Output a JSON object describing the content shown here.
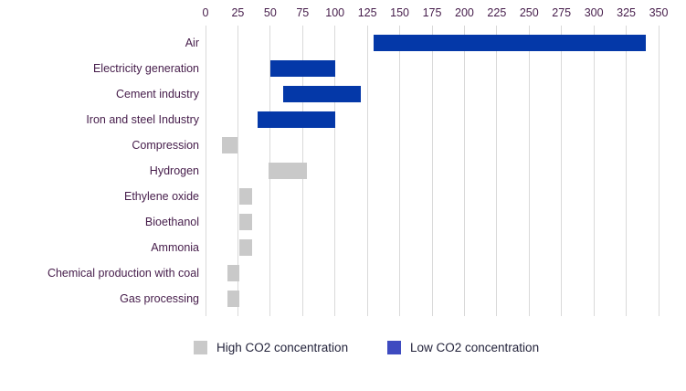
{
  "chart_data": {
    "type": "bar",
    "orientation": "horizontal-range",
    "title": "",
    "x_axis": {
      "position": "top",
      "min": 0,
      "max": 350,
      "tick_step": 25,
      "tick_labels": [
        "0",
        "25",
        "50",
        "75",
        "100",
        "125",
        "150",
        "175",
        "200",
        "225",
        "250",
        "275",
        "300",
        "325",
        "350"
      ],
      "grid": true
    },
    "categories": [
      "Air",
      "Electricity generation",
      "Cement industry",
      "Iron and steel Industry",
      "Compression",
      "Hydrogen",
      "Ethylene oxide",
      "Bioethanol",
      "Ammonia",
      "Chemical production with coal",
      "Gas processing"
    ],
    "bars": [
      {
        "category": "Air",
        "start": 130,
        "end": 340,
        "series": "Low CO2 concentration"
      },
      {
        "category": "Electricity generation",
        "start": 50,
        "end": 100,
        "series": "Low CO2 concentration"
      },
      {
        "category": "Cement industry",
        "start": 60,
        "end": 120,
        "series": "Low CO2 concentration"
      },
      {
        "category": "Iron and steel Industry",
        "start": 40,
        "end": 100,
        "series": "Low CO2 concentration"
      },
      {
        "category": "Compression",
        "start": 13,
        "end": 25,
        "series": "High CO2 concentration"
      },
      {
        "category": "Hydrogen",
        "start": 49,
        "end": 78,
        "series": "High CO2 concentration"
      },
      {
        "category": "Ethylene oxide",
        "start": 26,
        "end": 36,
        "series": "High CO2 concentration"
      },
      {
        "category": "Bioethanol",
        "start": 26,
        "end": 36,
        "series": "High CO2 concentration"
      },
      {
        "category": "Ammonia",
        "start": 26,
        "end": 36,
        "series": "High CO2 concentration"
      },
      {
        "category": "Chemical production with coal",
        "start": 17,
        "end": 26,
        "series": "High CO2 concentration"
      },
      {
        "category": "Gas processing",
        "start": 17,
        "end": 26,
        "series": "High CO2 concentration"
      }
    ],
    "legend": [
      {
        "label": "High CO2 concentration",
        "swatch_color": "#C9C9C9"
      },
      {
        "label": "Low CO2 concentration",
        "swatch_color": "#3E4BC0"
      }
    ],
    "legend_position": "bottom",
    "colors": {
      "bar_low_concentration": "#0438A8",
      "bar_high_concentration": "#C9C9C9",
      "legend_low_swatch": "#3E4BC0",
      "legend_high_swatch": "#C9C9C9",
      "gridline": "#D9D9D9",
      "axis_tick_label": "#451C4A",
      "category_label": "#451C4A",
      "legend_text": "#23233B",
      "background": "#FFFFFF"
    }
  }
}
